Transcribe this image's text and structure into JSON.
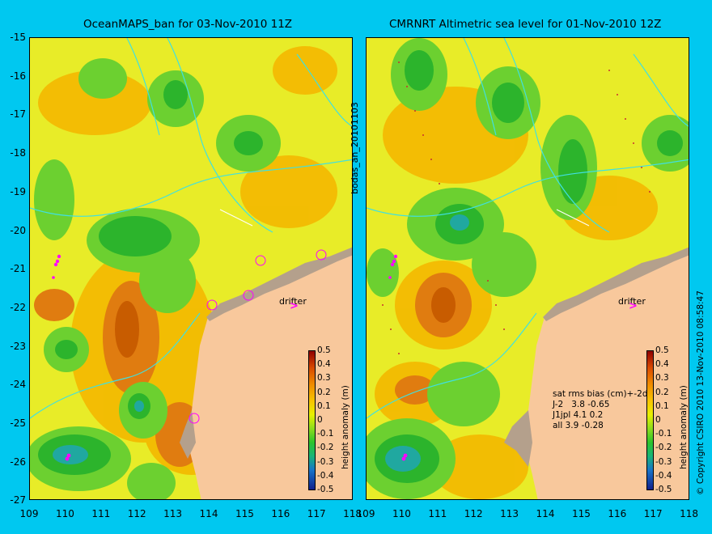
{
  "left_panel": {
    "title": "OceanMAPS_ban for 03-Nov-2010 11Z",
    "drifter_label": "drifter"
  },
  "right_panel": {
    "title": "CMRNRT Altimetric sea level  for 01-Nov-2010 12Z",
    "drifter_label": "drifter",
    "stats": {
      "header": "sat rms bias (cm)+-2d",
      "rows": [
        "J-2   3.8 -0.65",
        "J1jpl 4.1 0.2",
        "all 3.9 -0.28"
      ]
    }
  },
  "side_label": "bodas_an_20101103",
  "copyright": "© Copyright CSIRO 2010  13-Nov-2010 08:58:47",
  "axes": {
    "y_ticks": [
      "-15",
      "-16",
      "-17",
      "-18",
      "-19",
      "-20",
      "-21",
      "-22",
      "-23",
      "-24",
      "-25",
      "-26",
      "-27"
    ],
    "x_ticks": [
      "109",
      "110",
      "111",
      "112",
      "113",
      "114",
      "115",
      "116",
      "117",
      "118"
    ],
    "x_range": [
      109,
      118
    ],
    "y_range": [
      -27,
      -15
    ]
  },
  "colorbar": {
    "label": "height anomaly (m)",
    "ticks": [
      "0.5",
      "0.4",
      "0.3",
      "0.2",
      "0.1",
      "0",
      "-0.1",
      "-0.2",
      "-0.3",
      "-0.4",
      "-0.5"
    ],
    "range": [
      -0.5,
      0.5
    ]
  },
  "colors": {
    "background": "#00c8f0",
    "land": "#f8c89c",
    "shelf": "#b4a08c",
    "contour": "#40e0e0",
    "drifter": "#ff00ff"
  }
}
